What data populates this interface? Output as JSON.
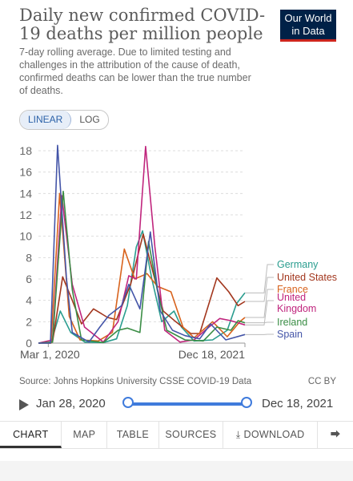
{
  "header": {
    "title": "Daily new confirmed COVID-19 deaths per million people",
    "subtitle": "7-day rolling average. Due to limited testing and challenges in the attribution of the cause of death, confirmed deaths can be lower than the true number of deaths.",
    "logo_line1": "Our World",
    "logo_line2": "in Data"
  },
  "scale_toggle": {
    "linear_label": "LINEAR",
    "log_label": "LOG",
    "selected": "LINEAR"
  },
  "source": {
    "text": "Source: Johns Hopkins University CSSE COVID-19 Data",
    "license": "CC BY"
  },
  "timeline": {
    "start_label": "Jan 28, 2020",
    "end_label": "Dec 18, 2021"
  },
  "tabs": {
    "chart": "CHART",
    "map": "MAP",
    "table": "TABLE",
    "sources": "SOURCES",
    "download": "DOWNLOAD",
    "share_icon": "share-icon",
    "download_icon": "download-icon",
    "play_icon": "play-icon"
  },
  "chart_data": {
    "type": "line",
    "title": "Daily new confirmed COVID-19 deaths per million people",
    "ylim": [
      0,
      18
    ],
    "yticks": [
      "0",
      "2",
      "4",
      "6",
      "8",
      "10",
      "12",
      "14",
      "16",
      "18"
    ],
    "xticks": [
      "Mar 1, 2020",
      "Dec 18, 2021"
    ],
    "xlim": [
      "2020-01-28",
      "2021-12-18"
    ],
    "grid": true,
    "legend": "right",
    "series": [
      {
        "name": "Germany",
        "color": "#2a9d8f",
        "x": [
          "2020-01-28",
          "2020-03-10",
          "2020-04-10",
          "2020-05-15",
          "2020-07-01",
          "2020-09-01",
          "2020-10-15",
          "2020-11-20",
          "2020-12-20",
          "2021-01-10",
          "2021-02-10",
          "2021-03-15",
          "2021-04-25",
          "2021-05-20",
          "2021-07-01",
          "2021-09-01",
          "2021-10-20",
          "2021-11-20",
          "2021-12-18"
        ],
        "y": [
          0,
          0,
          3,
          1,
          0.1,
          0.05,
          0.4,
          3.5,
          9,
          10.5,
          6,
          2,
          3,
          1.5,
          0.2,
          0.3,
          1.2,
          3.7,
          4.7
        ]
      },
      {
        "name": "United States",
        "color": "#a2361d",
        "x": [
          "2020-01-28",
          "2020-03-15",
          "2020-04-18",
          "2020-05-20",
          "2020-06-20",
          "2020-07-30",
          "2020-09-15",
          "2020-10-15",
          "2020-12-01",
          "2021-01-12",
          "2021-02-15",
          "2021-03-20",
          "2021-05-01",
          "2021-06-20",
          "2021-07-20",
          "2021-09-15",
          "2021-10-25",
          "2021-11-25",
          "2021-12-18"
        ],
        "y": [
          0,
          0.1,
          6.2,
          4,
          1.8,
          3.2,
          2.4,
          2.2,
          5.5,
          10.2,
          6.5,
          3,
          2,
          0.9,
          0.9,
          6.1,
          4.8,
          3.5,
          3.9
        ]
      },
      {
        "name": "France",
        "color": "#d8631d",
        "x": [
          "2020-01-28",
          "2020-03-10",
          "2020-04-08",
          "2020-05-10",
          "2020-06-15",
          "2020-08-15",
          "2020-10-01",
          "2020-11-10",
          "2020-12-15",
          "2021-01-25",
          "2021-03-01",
          "2021-04-15",
          "2021-05-25",
          "2021-07-01",
          "2021-09-01",
          "2021-10-20",
          "2021-12-01",
          "2021-12-18"
        ],
        "y": [
          0,
          0,
          14,
          2.5,
          0.3,
          0.2,
          1,
          8.8,
          6,
          6.5,
          5.3,
          4.8,
          1.5,
          0.5,
          2,
          0.6,
          2,
          2.4
        ]
      },
      {
        "name": "United Kingdom",
        "color": "#c0257d",
        "x": [
          "2020-01-28",
          "2020-03-15",
          "2020-04-15",
          "2020-05-20",
          "2020-06-30",
          "2020-09-01",
          "2020-10-20",
          "2020-11-25",
          "2020-12-20",
          "2021-01-20",
          "2021-02-20",
          "2021-03-25",
          "2021-05-15",
          "2021-07-01",
          "2021-08-20",
          "2021-09-25",
          "2021-11-01",
          "2021-12-18"
        ],
        "y": [
          0,
          0.3,
          13.8,
          5.5,
          1.5,
          0.1,
          2,
          6.3,
          6,
          18.4,
          9,
          1.2,
          0.1,
          0.3,
          1.5,
          2.3,
          2.1,
          1.7
        ]
      },
      {
        "name": "Ireland",
        "color": "#3a8d45",
        "x": [
          "2020-01-28",
          "2020-03-15",
          "2020-04-20",
          "2020-05-20",
          "2020-06-20",
          "2020-09-01",
          "2020-10-20",
          "2020-11-20",
          "2021-01-01",
          "2021-01-30",
          "2021-02-28",
          "2021-04-01",
          "2021-06-01",
          "2021-08-01",
          "2021-09-15",
          "2021-11-01",
          "2021-11-25",
          "2021-12-18"
        ],
        "y": [
          0,
          0.1,
          14.2,
          5,
          0.3,
          0.05,
          1.2,
          1.4,
          1,
          9.5,
          5,
          1.2,
          0.3,
          0.2,
          1.5,
          1.2,
          2.1,
          1.9
        ]
      },
      {
        "name": "Spain",
        "color": "#4455a8",
        "x": [
          "2020-01-28",
          "2020-03-08",
          "2020-04-01",
          "2020-05-01",
          "2020-05-20",
          "2020-07-15",
          "2020-08-20",
          "2020-09-20",
          "2020-11-01",
          "2020-11-25",
          "2021-01-01",
          "2021-02-05",
          "2021-03-10",
          "2021-04-20",
          "2021-06-01",
          "2021-07-20",
          "2021-08-25",
          "2021-10-15",
          "2021-12-18"
        ],
        "y": [
          0,
          0,
          18.5,
          6,
          1,
          0.1,
          1.5,
          2.6,
          3.5,
          5.5,
          3.2,
          10.4,
          3,
          1.2,
          0.7,
          0.4,
          1.8,
          0.3,
          0.8
        ]
      }
    ]
  }
}
